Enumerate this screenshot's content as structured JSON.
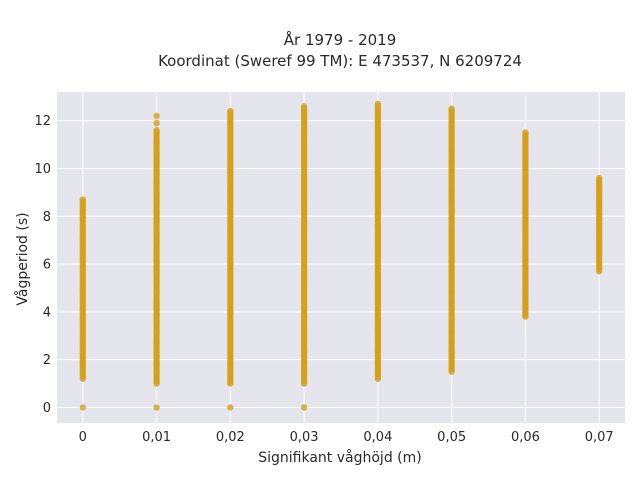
{
  "chart_data": {
    "type": "scatter",
    "title_line1": "År 1979 - 2019",
    "title_line2": "Koordinat (Sweref 99 TM): E 473537, N 6209724",
    "xlabel": "Signifikant våghöjd (m)",
    "ylabel": "Vågperiod (s)",
    "xlim": [
      -0.0035,
      0.0735
    ],
    "ylim": [
      -0.65,
      13.2
    ],
    "grid": true,
    "x_ticks": [
      {
        "value": 0,
        "label": "0"
      },
      {
        "value": 0.01,
        "label": "0,01"
      },
      {
        "value": 0.02,
        "label": "0,02"
      },
      {
        "value": 0.03,
        "label": "0,03"
      },
      {
        "value": 0.04,
        "label": "0,04"
      },
      {
        "value": 0.05,
        "label": "0,05"
      },
      {
        "value": 0.06,
        "label": "0,06"
      },
      {
        "value": 0.07,
        "label": "0,07"
      }
    ],
    "y_ticks": [
      {
        "value": 0,
        "label": "0"
      },
      {
        "value": 2,
        "label": "2"
      },
      {
        "value": 4,
        "label": "4"
      },
      {
        "value": 6,
        "label": "6"
      },
      {
        "value": 8,
        "label": "8"
      },
      {
        "value": 10,
        "label": "10"
      },
      {
        "value": 12,
        "label": "12"
      }
    ],
    "marker_color": "#D4A017",
    "background_color": "#E5E5EE",
    "columns": [
      {
        "x": 0.0,
        "ymin": 1.2,
        "ymax": 8.7,
        "extra_points": [
          0.0
        ]
      },
      {
        "x": 0.01,
        "ymin": 1.0,
        "ymax": 11.6,
        "extra_points": [
          0.0,
          12.2,
          11.9
        ]
      },
      {
        "x": 0.02,
        "ymin": 1.0,
        "ymax": 12.4,
        "extra_points": [
          0.0
        ]
      },
      {
        "x": 0.03,
        "ymin": 1.0,
        "ymax": 12.6,
        "extra_points": [
          0.0
        ]
      },
      {
        "x": 0.04,
        "ymin": 1.2,
        "ymax": 12.7,
        "extra_points": []
      },
      {
        "x": 0.05,
        "ymin": 1.5,
        "ymax": 12.5,
        "extra_points": []
      },
      {
        "x": 0.06,
        "ymin": 3.8,
        "ymax": 11.5,
        "extra_points": []
      },
      {
        "x": 0.07,
        "ymin": 5.7,
        "ymax": 9.6,
        "extra_points": []
      }
    ]
  }
}
